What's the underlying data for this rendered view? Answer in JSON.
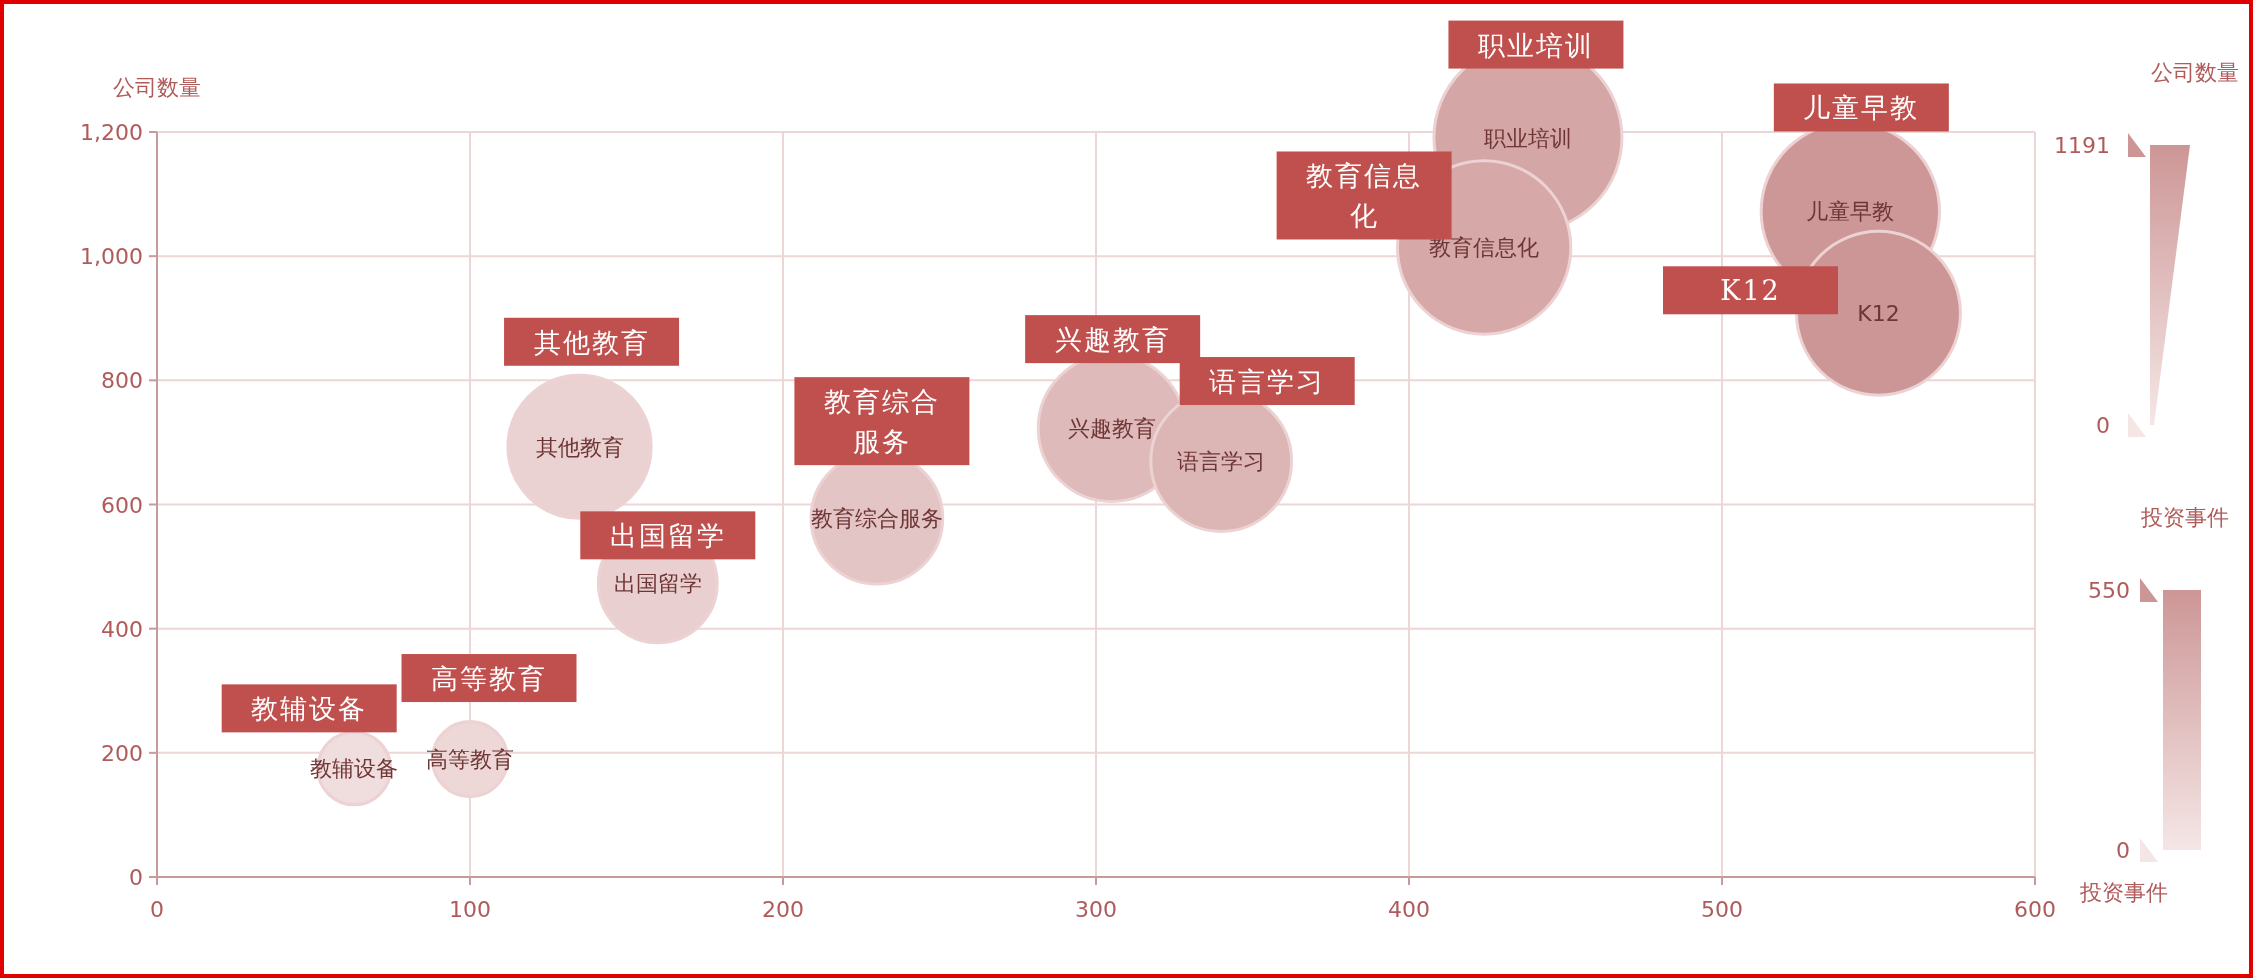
{
  "chart_data": {
    "type": "bubble",
    "xlabel": "投资事件",
    "ylabel": "公司数量",
    "clabel": "投资事件",
    "clim": [
      0,
      550
    ],
    "cticks": [
      0,
      550
    ],
    "grid": true,
    "xlim": [
      0,
      600
    ],
    "ylim": [
      0,
      1200
    ],
    "xticks": [
      0,
      100,
      200,
      300,
      400,
      500,
      600
    ],
    "yticks": [
      0,
      200,
      400,
      600,
      800,
      {
        "value": 1000,
        "label": "1,000"
      },
      {
        "value": 1200,
        "label": "1,200"
      }
    ],
    "x": [
      63,
      100,
      135,
      160,
      230,
      305,
      340,
      438,
      424,
      541,
      550
    ],
    "values": [
      175,
      190,
      693,
      473,
      578,
      723,
      670,
      1191,
      1014,
      1072,
      908
    ],
    "sizes": [
      0.15,
      0.16,
      0.58,
      0.4,
      0.49,
      0.61,
      0.56,
      1,
      0.85,
      0.9,
      0.76
    ],
    "cvalues": [
      63,
      100,
      135,
      160,
      230,
      305,
      340,
      438,
      424,
      541,
      550
    ],
    "value_labels": [
      "教辅设备",
      "高等教育",
      "其他教育",
      "出国留学",
      "教育综合服务",
      "兴趣教育",
      "语言学习",
      "职业培训",
      "教育信息化",
      "儿童早教",
      "K12"
    ],
    "annotations": [
      "教辅设备",
      "高等教育",
      "其他教育",
      "出国留学",
      "教育综合服务",
      "兴趣教育",
      "语言学习",
      "职业培训",
      "教育信息化",
      "儿童早教",
      "K12",
      "公司数量",
      "1191",
      "0"
    ]
  }
}
